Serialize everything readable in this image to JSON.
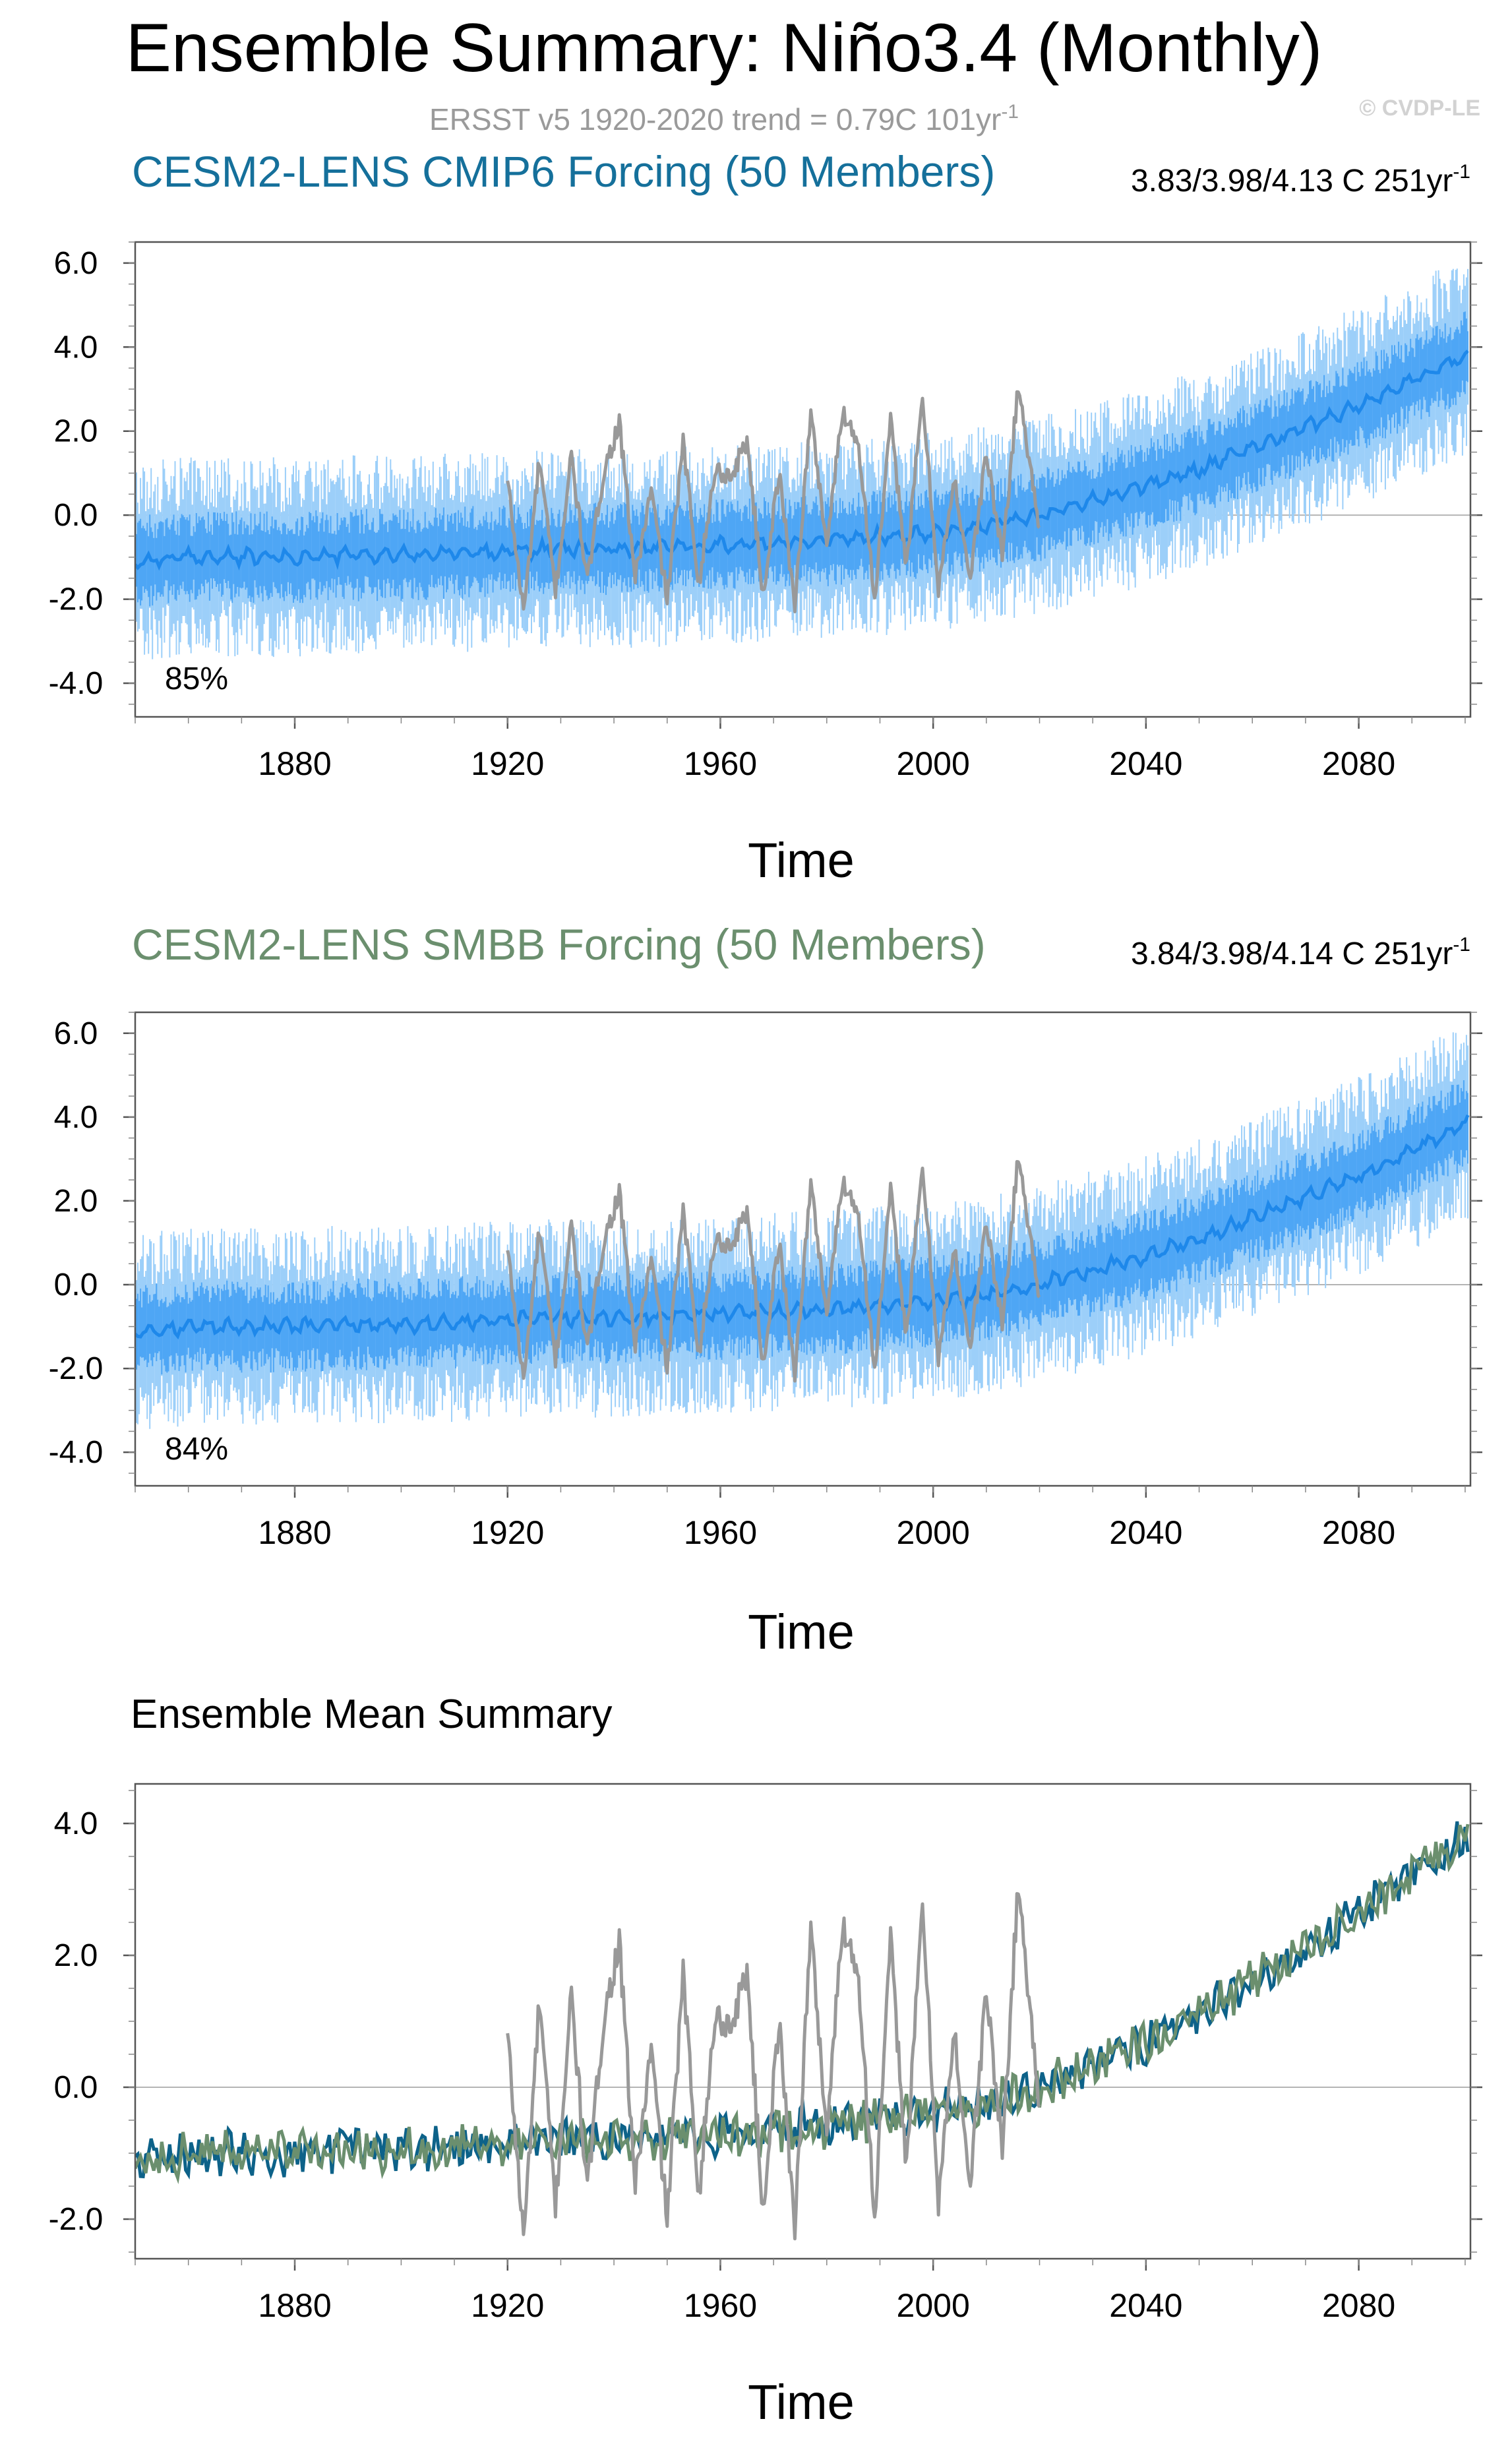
{
  "page": {
    "title": "Ensemble Summary: Niño3.4 (Monthly)",
    "subtitle": "ERSST v5 1920-2020 trend = 0.79C 101yr",
    "subtitle_sup": "-1",
    "watermark": "© CVDP-LE"
  },
  "colors": {
    "cmip6_title": "#15709b",
    "smbb_title": "#6b8f6e",
    "ens_fill_light": "#9ccff9",
    "ens_fill_mid": "#4ea6f5",
    "ens_mean": "#1e88ea",
    "obs": "#999999",
    "cmip6_mean": "#0d6289",
    "smbb_mean": "#6b8f6e",
    "zero_line": "#b4b4b4",
    "axis": "#000000"
  },
  "chart_data": [
    {
      "type": "line",
      "panel": "cmip6",
      "title": "CESM2-LENS CMIP6 Forcing (50 Members)",
      "trend_label": "3.83/3.98/4.13 C 251yr",
      "trend_sup": "-1",
      "percent_label": "85%",
      "xlabel": "Time",
      "ylabel": "",
      "xlim": [
        1850,
        2101
      ],
      "ylim": [
        -4.8,
        6.5
      ],
      "xticks": [
        1880,
        1920,
        1960,
        2000,
        2040,
        2080
      ],
      "xtick_labels": [
        "1880",
        "1920",
        "1960",
        "2000",
        "2040",
        "2080"
      ],
      "yticks": [
        -4,
        -2,
        0,
        2,
        4,
        6
      ],
      "ytick_labels": [
        "-4.0",
        "-2.0",
        "0.0",
        "2.0",
        "4.0",
        "6.0"
      ],
      "series": [
        {
          "name": "ensemble mean",
          "role": "mean",
          "x": [
            1850,
            1860,
            1870,
            1880,
            1890,
            1900,
            1910,
            1920,
            1930,
            1940,
            1950,
            1960,
            1970,
            1980,
            1990,
            2000,
            2010,
            2020,
            2030,
            2040,
            2050,
            2060,
            2070,
            2080,
            2090,
            2100
          ],
          "values": [
            -1.1,
            -1.0,
            -1.0,
            -1.0,
            -0.95,
            -0.95,
            -0.9,
            -0.85,
            -0.8,
            -0.8,
            -0.75,
            -0.7,
            -0.65,
            -0.6,
            -0.5,
            -0.4,
            -0.25,
            0.0,
            0.35,
            0.7,
            1.1,
            1.6,
            2.1,
            2.6,
            3.2,
            3.8
          ],
          "spread_inner": 1.0,
          "spread_outer": 1.9
        },
        {
          "name": "ERSST v5",
          "role": "observed",
          "x": [
            1920,
            1923,
            1926,
            1929,
            1932,
            1935,
            1938,
            1941,
            1944,
            1947,
            1950,
            1953,
            1956,
            1959,
            1962,
            1965,
            1968,
            1971,
            1974,
            1977,
            1980,
            1983,
            1986,
            1989,
            1992,
            1995,
            1998,
            2001,
            2004,
            2007,
            2010,
            2013,
            2016,
            2019,
            2020
          ],
          "values": [
            0.8,
            -2.3,
            1.3,
            -1.8,
            1.4,
            -1.6,
            1.0,
            2.2,
            -1.5,
            0.6,
            -2.0,
            1.7,
            -1.6,
            1.1,
            0.9,
            1.8,
            -1.9,
            1.0,
            -2.1,
            2.4,
            -0.7,
            2.5,
            1.7,
            -2.0,
            2.2,
            -1.2,
            2.8,
            -1.7,
            0.8,
            -1.5,
            1.5,
            -1.0,
            3.1,
            0.5,
            -0.2
          ]
        }
      ]
    },
    {
      "type": "line",
      "panel": "smbb",
      "title": "CESM2-LENS SMBB Forcing (50 Members)",
      "trend_label": "3.84/3.98/4.14 C 251yr",
      "trend_sup": "-1",
      "percent_label": "84%",
      "xlabel": "Time",
      "ylabel": "",
      "xlim": [
        1850,
        2101
      ],
      "ylim": [
        -4.8,
        6.5
      ],
      "xticks": [
        1880,
        1920,
        1960,
        2000,
        2040,
        2080
      ],
      "xtick_labels": [
        "1880",
        "1920",
        "1960",
        "2000",
        "2040",
        "2080"
      ],
      "yticks": [
        -4,
        -2,
        0,
        2,
        4,
        6
      ],
      "ytick_labels": [
        "-4.0",
        "-2.0",
        "0.0",
        "2.0",
        "4.0",
        "6.0"
      ],
      "series": [
        {
          "name": "ensemble mean",
          "role": "mean",
          "x": [
            1850,
            1860,
            1870,
            1880,
            1890,
            1900,
            1910,
            1920,
            1930,
            1940,
            1950,
            1960,
            1970,
            1980,
            1990,
            2000,
            2010,
            2020,
            2030,
            2040,
            2050,
            2060,
            2070,
            2080,
            2090,
            2100
          ],
          "values": [
            -1.1,
            -1.0,
            -1.0,
            -1.0,
            -0.95,
            -0.95,
            -0.9,
            -0.85,
            -0.8,
            -0.8,
            -0.75,
            -0.7,
            -0.65,
            -0.6,
            -0.5,
            -0.4,
            -0.25,
            0.0,
            0.35,
            0.7,
            1.1,
            1.6,
            2.1,
            2.6,
            3.2,
            3.85
          ],
          "spread_inner": 1.0,
          "spread_outer": 1.9
        },
        {
          "name": "ERSST v5",
          "role": "observed",
          "x": [
            1920,
            1923,
            1926,
            1929,
            1932,
            1935,
            1938,
            1941,
            1944,
            1947,
            1950,
            1953,
            1956,
            1959,
            1962,
            1965,
            1968,
            1971,
            1974,
            1977,
            1980,
            1983,
            1986,
            1989,
            1992,
            1995,
            1998,
            2001,
            2004,
            2007,
            2010,
            2013,
            2016,
            2019,
            2020
          ],
          "values": [
            0.8,
            -2.3,
            1.3,
            -1.8,
            1.4,
            -1.6,
            1.0,
            2.2,
            -1.5,
            0.6,
            -2.0,
            1.7,
            -1.6,
            1.1,
            0.9,
            1.8,
            -1.9,
            1.0,
            -2.1,
            2.4,
            -0.7,
            2.5,
            1.7,
            -2.0,
            2.2,
            -1.2,
            2.8,
            -1.7,
            0.8,
            -1.5,
            1.5,
            -1.0,
            3.1,
            0.5,
            -0.2
          ]
        }
      ]
    },
    {
      "type": "line",
      "panel": "mean_summary",
      "title": "Ensemble Mean Summary",
      "xlabel": "Time",
      "ylabel": "",
      "xlim": [
        1850,
        2101
      ],
      "ylim": [
        -2.6,
        4.6
      ],
      "xticks": [
        1880,
        1920,
        1960,
        2000,
        2040,
        2080
      ],
      "xtick_labels": [
        "1880",
        "1920",
        "1960",
        "2000",
        "2040",
        "2080"
      ],
      "yticks": [
        -2,
        0,
        2,
        4
      ],
      "ytick_labels": [
        "-2.0",
        "0.0",
        "2.0",
        "4.0"
      ],
      "series": [
        {
          "name": "ERSST v5",
          "role": "observed",
          "x": [
            1920,
            1923,
            1926,
            1929,
            1932,
            1935,
            1938,
            1941,
            1944,
            1947,
            1950,
            1953,
            1956,
            1959,
            1962,
            1965,
            1968,
            1971,
            1974,
            1977,
            1980,
            1983,
            1986,
            1989,
            1992,
            1995,
            1998,
            2001,
            2004,
            2007,
            2010,
            2013,
            2016,
            2019,
            2020
          ],
          "values": [
            0.8,
            -2.3,
            1.3,
            -1.8,
            1.4,
            -1.6,
            1.0,
            2.2,
            -1.5,
            0.6,
            -2.0,
            1.7,
            -1.6,
            1.1,
            0.9,
            1.8,
            -1.9,
            1.0,
            -2.1,
            2.4,
            -0.7,
            2.5,
            1.7,
            -2.0,
            2.2,
            -1.2,
            2.8,
            -1.7,
            0.8,
            -1.5,
            1.5,
            -1.0,
            3.1,
            0.5,
            -0.2
          ]
        },
        {
          "name": "CESM2-LENS CMIP6 mean",
          "role": "model1",
          "x": [
            1850,
            1860,
            1870,
            1880,
            1890,
            1900,
            1910,
            1920,
            1930,
            1940,
            1950,
            1960,
            1970,
            1980,
            1990,
            2000,
            2010,
            2020,
            2030,
            2040,
            2050,
            2060,
            2070,
            2080,
            2090,
            2100
          ],
          "values": [
            -1.1,
            -1.0,
            -1.0,
            -1.0,
            -0.95,
            -0.95,
            -0.9,
            -0.85,
            -0.8,
            -0.8,
            -0.75,
            -0.7,
            -0.65,
            -0.6,
            -0.5,
            -0.4,
            -0.25,
            0.0,
            0.35,
            0.7,
            1.1,
            1.6,
            2.1,
            2.6,
            3.2,
            3.8
          ]
        },
        {
          "name": "CESM2-LENS SMBB mean",
          "role": "model2",
          "x": [
            1850,
            1860,
            1870,
            1880,
            1890,
            1900,
            1910,
            1920,
            1930,
            1940,
            1950,
            1960,
            1970,
            1980,
            1990,
            2000,
            2010,
            2020,
            2030,
            2040,
            2050,
            2060,
            2070,
            2080,
            2090,
            2100
          ],
          "values": [
            -1.1,
            -1.0,
            -1.0,
            -1.0,
            -0.95,
            -0.95,
            -0.9,
            -0.85,
            -0.8,
            -0.8,
            -0.75,
            -0.7,
            -0.65,
            -0.6,
            -0.5,
            -0.4,
            -0.25,
            0.0,
            0.35,
            0.7,
            1.1,
            1.6,
            2.1,
            2.6,
            3.2,
            3.85
          ]
        }
      ]
    }
  ]
}
